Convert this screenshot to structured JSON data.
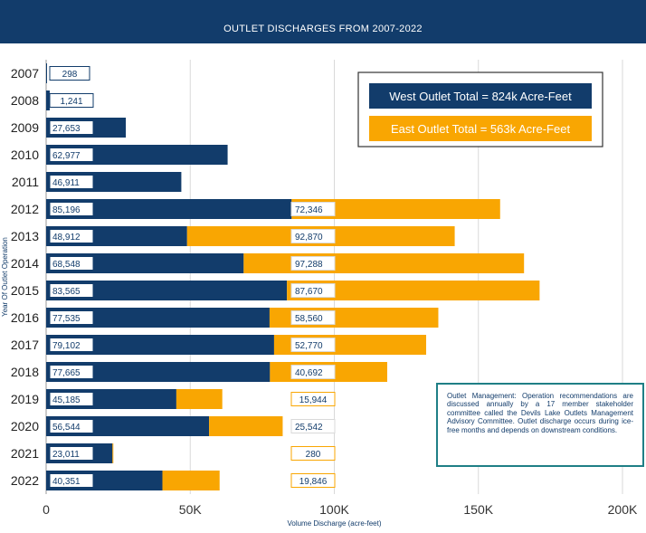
{
  "title": "OUTLET DISCHARGES FROM 2007-2022",
  "note": "Outlet Management: Operation recommendations are discussed annually by a 17 member stakeholder committee called the Devils Lake Outlets Management Advisory Committee. Outlet discharge occurs during ice-free months and depends on downstream conditions.",
  "colors": {
    "west": "#123c6b",
    "east": "#f9a602",
    "header": "#123c6b",
    "note_border": "#1f7f86"
  },
  "chart_data": {
    "type": "bar",
    "orientation": "horizontal",
    "stacked": true,
    "categories": [
      "2007",
      "2008",
      "2009",
      "2010",
      "2011",
      "2012",
      "2013",
      "2014",
      "2015",
      "2016",
      "2017",
      "2018",
      "2019",
      "2020",
      "2021",
      "2022"
    ],
    "series": [
      {
        "name": "West Outlet Total = 824k Acre-Feet",
        "values": [
          298,
          1241,
          27653,
          62977,
          46911,
          85196,
          48912,
          68548,
          83565,
          77535,
          79102,
          77665,
          45185,
          56544,
          23011,
          40351
        ],
        "labels": [
          "298",
          "1,241",
          "27,653",
          "62,977",
          "46,911",
          "85,196",
          "48,912",
          "68,548",
          "83,565",
          "77,535",
          "79,102",
          "77,665",
          "45,185",
          "56,544",
          "23,011",
          "40,351"
        ]
      },
      {
        "name": "East Outlet Total = 563k Acre-Feet",
        "values": [
          0,
          0,
          0,
          0,
          0,
          72346,
          92870,
          97288,
          87670,
          58560,
          52770,
          40692,
          15944,
          25542,
          280,
          19846
        ],
        "labels": [
          "",
          "",
          "",
          "",
          "",
          "72,346",
          "92,870",
          "97,288",
          "87,670",
          "58,560",
          "52,770",
          "40,692",
          "15,944",
          "25,542",
          "280",
          "19,846"
        ]
      }
    ],
    "xlim": [
      0,
      200000
    ],
    "xticks": [
      0,
      50000,
      100000,
      150000,
      200000
    ],
    "xtick_labels": [
      "0",
      "50K",
      "100K",
      "150K",
      "200K"
    ],
    "xlabel": "Volume Discharge (acre-feet)",
    "ylabel": "Year Of Outlet Operation",
    "grid": "vertical",
    "legend": "top-right"
  }
}
